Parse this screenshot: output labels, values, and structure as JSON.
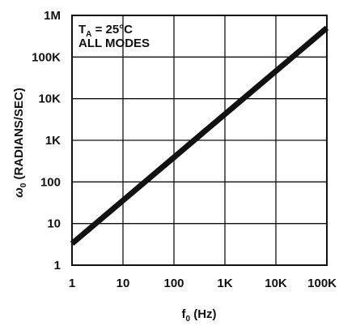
{
  "chart_data": {
    "type": "line",
    "x_scale": "log",
    "y_scale": "log",
    "xlim": [
      1,
      100000
    ],
    "ylim": [
      1,
      1000000
    ],
    "grid": true,
    "xlabel": {
      "main": "f",
      "sub": "0",
      "rest": " (Hz)"
    },
    "ylabel": {
      "main": "ω",
      "sub": "0",
      "rest": " (RADIANS/SEC)"
    },
    "x_ticks": [
      {
        "value": 1,
        "label": "1"
      },
      {
        "value": 10,
        "label": "10"
      },
      {
        "value": 100,
        "label": "100"
      },
      {
        "value": 1000,
        "label": "1K"
      },
      {
        "value": 10000,
        "label": "10K"
      },
      {
        "value": 100000,
        "label": "100K"
      }
    ],
    "y_ticks": [
      {
        "value": 1,
        "label": "1"
      },
      {
        "value": 10,
        "label": "10"
      },
      {
        "value": 100,
        "label": "100"
      },
      {
        "value": 1000,
        "label": "1K"
      },
      {
        "value": 10000,
        "label": "10K"
      },
      {
        "value": 100000,
        "label": "100K"
      },
      {
        "value": 1000000,
        "label": "1M"
      }
    ],
    "annotation": {
      "line1_main": "T",
      "line1_sub": "A",
      "line1_rest": " = 25°C",
      "line2": "ALL MODES"
    },
    "series": [
      {
        "color": "#111111",
        "x": [
          1,
          100000
        ],
        "y": [
          3.3,
          500000
        ]
      }
    ]
  }
}
